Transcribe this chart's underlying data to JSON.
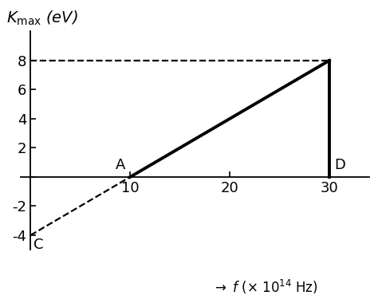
{
  "ylabel_K": "$K_{\\mathrm{max}}$",
  "ylabel_units": "(eV)",
  "xlabel": "$\\rightarrow$ $f$ ($\\times$ 10$^{14}$ Hz)",
  "xlim": [
    -1,
    34
  ],
  "ylim": [
    -5,
    10
  ],
  "yticks": [
    -4,
    -2,
    0,
    2,
    4,
    6,
    8
  ],
  "xticks": [
    10,
    20,
    30
  ],
  "x_end": 30,
  "y_end": 8,
  "point_A": [
    10,
    0
  ],
  "point_D": [
    30,
    0
  ],
  "point_C": [
    0,
    -4
  ],
  "solid_line_color": "#000000",
  "dashed_line_color": "#000000",
  "bg_color": "#ffffff",
  "linewidth_solid": 2.8,
  "linewidth_dashed": 1.6,
  "label_fontsize": 14,
  "tick_fontsize": 13,
  "point_label_fontsize": 13
}
